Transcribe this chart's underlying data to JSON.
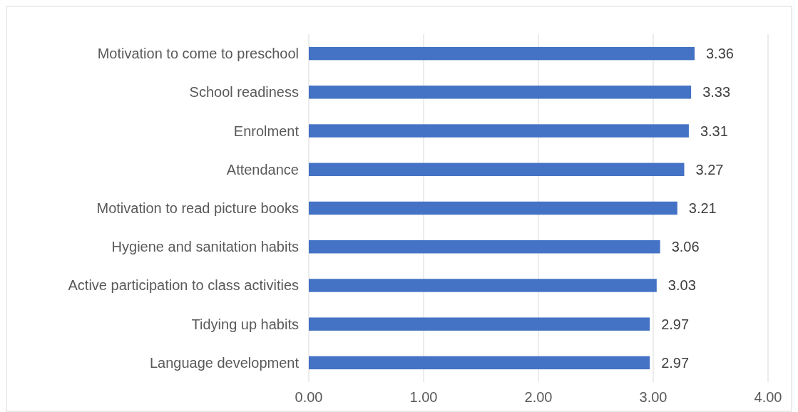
{
  "chart_data": {
    "type": "bar",
    "orientation": "horizontal",
    "categories": [
      "Motivation to come to preschool",
      "School readiness",
      "Enrolment",
      "Attendance",
      "Motivation to read picture books",
      "Hygiene and sanitation habits",
      "Active participation to class activities",
      "Tidying up habits",
      "Language development"
    ],
    "values": [
      3.36,
      3.33,
      3.31,
      3.27,
      3.21,
      3.06,
      3.03,
      2.97,
      2.97
    ],
    "color": "#4472c4",
    "xlim": [
      0,
      4
    ],
    "xticks": [
      {
        "value": 0,
        "label": "0.00"
      },
      {
        "value": 1,
        "label": "1.00"
      },
      {
        "value": 2,
        "label": "2.00"
      },
      {
        "value": 3,
        "label": "3.00"
      },
      {
        "value": 4,
        "label": "4.00"
      }
    ],
    "grid": "x",
    "data_labels": true
  }
}
